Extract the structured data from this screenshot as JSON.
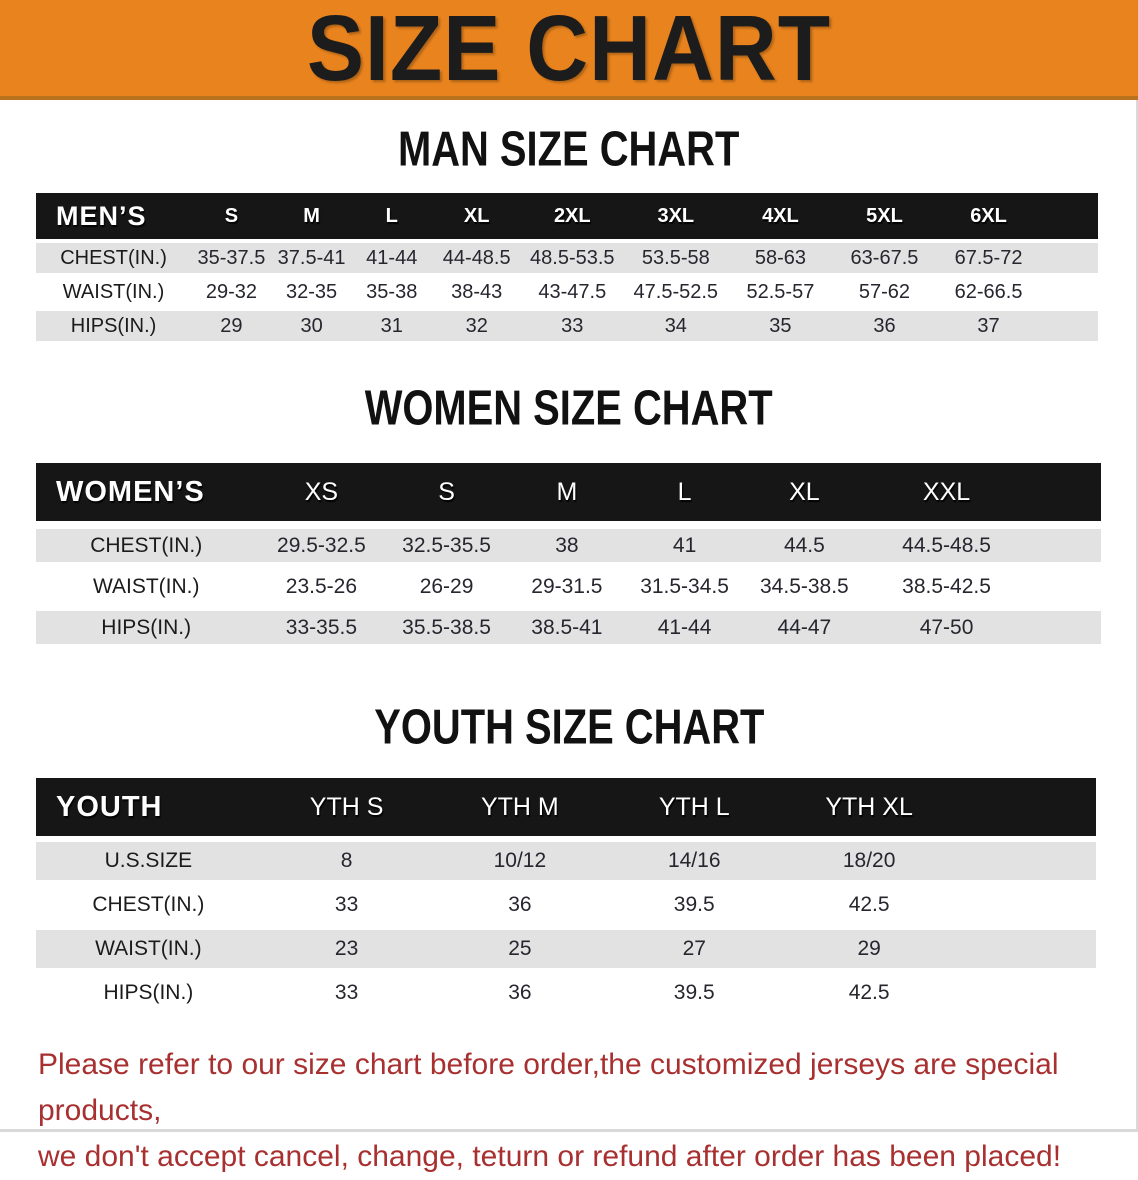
{
  "banner": {
    "title": "SIZE CHART"
  },
  "colors": {
    "banner_orange": "#e8831e",
    "banner_edge": "#b9731f",
    "header_black": "#161616",
    "row_gray": "#e2e2e2",
    "disclaimer_red": "#a83030"
  },
  "sections": {
    "men": {
      "heading": "MAN SIZE CHART",
      "table": {
        "header": [
          "MEN’S",
          "S",
          "M",
          "L",
          "XL",
          "2XL",
          "3XL",
          "4XL",
          "5XL",
          "6XL"
        ],
        "rows": [
          [
            "CHEST(IN.)",
            "35-37.5",
            "37.5-41",
            "41-44",
            "44-48.5",
            "48.5-53.5",
            "53.5-58",
            "58-63",
            "63-67.5",
            "67.5-72"
          ],
          [
            "WAIST(IN.)",
            "29-32",
            "32-35",
            "35-38",
            "38-43",
            "43-47.5",
            "47.5-52.5",
            "52.5-57",
            "57-62",
            "62-66.5"
          ],
          [
            "HIPS(IN.)",
            "29",
            "30",
            "31",
            "32",
            "33",
            "34",
            "35",
            "36",
            "37"
          ]
        ]
      }
    },
    "women": {
      "heading": "WOMEN SIZE CHART",
      "table": {
        "header": [
          "WOMEN’S",
          "XS",
          "S",
          "M",
          "L",
          "XL",
          "XXL"
        ],
        "rows": [
          [
            "CHEST(IN.)",
            "29.5-32.5",
            "32.5-35.5",
            "38",
            "41",
            "44.5",
            "44.5-48.5"
          ],
          [
            "WAIST(IN.)",
            "23.5-26",
            "26-29",
            "29-31.5",
            "31.5-34.5",
            "34.5-38.5",
            "38.5-42.5"
          ],
          [
            "HIPS(IN.)",
            "33-35.5",
            "35.5-38.5",
            "38.5-41",
            "41-44",
            "44-47",
            "47-50"
          ]
        ]
      }
    },
    "youth": {
      "heading": "YOUTH SIZE CHART",
      "table": {
        "header": [
          "YOUTH",
          "YTH S",
          "YTH M",
          "YTH L",
          "YTH XL"
        ],
        "rows": [
          [
            "U.S.SIZE",
            "8",
            "10/12",
            "14/16",
            "18/20"
          ],
          [
            "CHEST(IN.)",
            "33",
            "36",
            "39.5",
            "42.5"
          ],
          [
            "WAIST(IN.)",
            "23",
            "25",
            "27",
            "29"
          ],
          [
            "HIPS(IN.)",
            "33",
            "36",
            "39.5",
            "42.5"
          ]
        ]
      }
    }
  },
  "disclaimer": {
    "line1": "Please refer to our size chart before order,the customized jerseys are special products,",
    "line2": "we don't accept cancel, change, teturn or refund after order has been placed!"
  }
}
